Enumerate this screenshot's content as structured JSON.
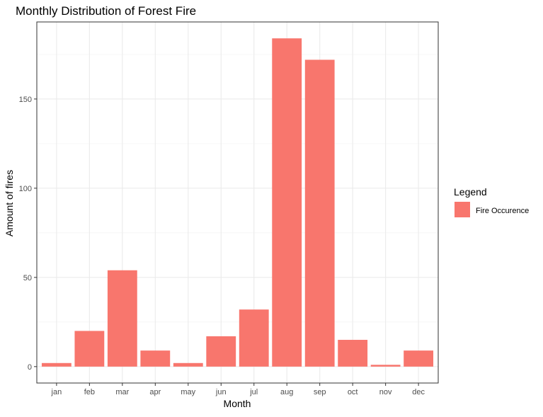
{
  "chart_data": {
    "type": "bar",
    "title": "Monthly Distribution of Forest Fire",
    "xlabel": "Month",
    "ylabel": "Amount of fires",
    "categories": [
      "jan",
      "feb",
      "mar",
      "apr",
      "may",
      "jun",
      "jul",
      "aug",
      "sep",
      "oct",
      "nov",
      "dec"
    ],
    "values": [
      2,
      20,
      54,
      9,
      2,
      17,
      32,
      184,
      172,
      15,
      1,
      9
    ],
    "ylim": [
      -9.2,
      193.2
    ],
    "yticks": [
      0,
      50,
      100,
      150
    ],
    "grid": true,
    "legend": {
      "title": "Legend",
      "entries": [
        "Fire Occurence"
      ],
      "placement": "right"
    },
    "colors": {
      "bar": "#F8766D",
      "panel_border": "#333333",
      "grid_major": "#EBEBEB",
      "grid_minor": "#F5F5F5",
      "text": "#000000",
      "tick_text": "#4D4D4D"
    }
  }
}
